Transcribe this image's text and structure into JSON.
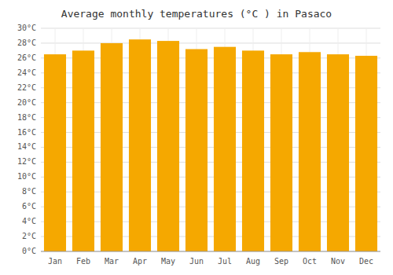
{
  "chart_data": {
    "type": "bar",
    "title": "Average monthly temperatures (°C ) in Pasaco",
    "categories": [
      "Jan",
      "Feb",
      "Mar",
      "Apr",
      "May",
      "Jun",
      "Jul",
      "Aug",
      "Sep",
      "Oct",
      "Nov",
      "Dec"
    ],
    "values": [
      26.5,
      27.0,
      28.0,
      28.5,
      28.3,
      27.2,
      27.5,
      27.0,
      26.5,
      26.8,
      26.5,
      26.3
    ],
    "color": "#F5A800",
    "ylim": [
      0,
      30
    ],
    "yticks": [
      {
        "value": 0,
        "label": "0°C"
      },
      {
        "value": 2,
        "label": "2°C"
      },
      {
        "value": 4,
        "label": "4°C"
      },
      {
        "value": 6,
        "label": "6°C"
      },
      {
        "value": 8,
        "label": "8°C"
      },
      {
        "value": 10,
        "label": "10°C"
      },
      {
        "value": 12,
        "label": "12°C"
      },
      {
        "value": 14,
        "label": "14°C"
      },
      {
        "value": 16,
        "label": "16°C"
      },
      {
        "value": 18,
        "label": "18°C"
      },
      {
        "value": 20,
        "label": "20°C"
      },
      {
        "value": 22,
        "label": "22°C"
      },
      {
        "value": 24,
        "label": "24°C"
      },
      {
        "value": 26,
        "label": "26°C"
      },
      {
        "value": 28,
        "label": "28°C"
      },
      {
        "value": 30,
        "label": "30°C"
      }
    ],
    "grid": true
  }
}
